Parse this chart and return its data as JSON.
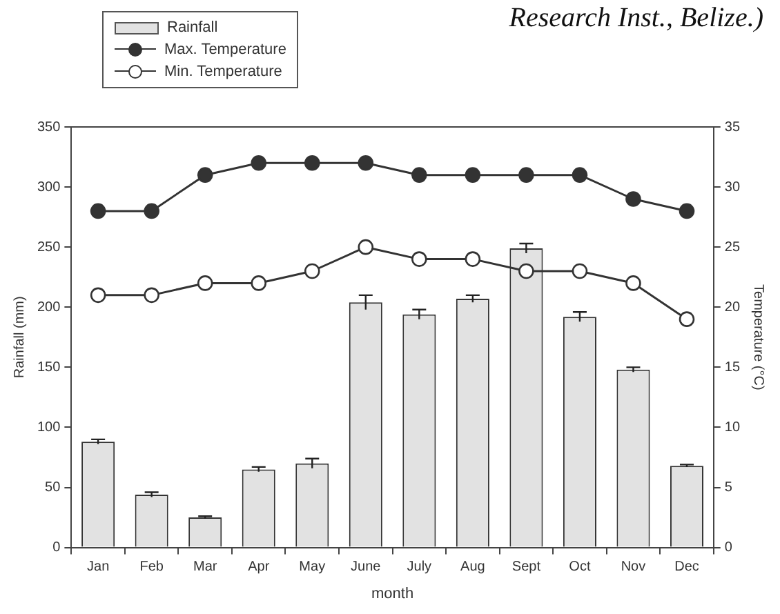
{
  "chart_data": {
    "type": "bar",
    "xlabel": "month",
    "ylabel": "Rainfall (mm)",
    "y2label": "Temperature (°C)",
    "annotations": [
      "Research Inst., Belize.)"
    ],
    "categories": [
      "Jan",
      "Feb",
      "Mar",
      "Apr",
      "May",
      "June",
      "July",
      "Aug",
      "Sept",
      "Oct",
      "Nov",
      "Dec"
    ],
    "series": [
      {
        "name": "Rainfall",
        "color": "#e2e2e2",
        "values": [
          88,
          44,
          25,
          65,
          70,
          204,
          194,
          207,
          249,
          192,
          148,
          68
        ],
        "errors": [
          2,
          2,
          1,
          2,
          4,
          6,
          4,
          3,
          4,
          4,
          2,
          1
        ]
      },
      {
        "name": "Max. Temperature",
        "type": "line",
        "axis": "y2",
        "color": "#333333",
        "values": [
          28,
          28,
          31,
          32,
          32,
          32,
          31,
          31,
          31,
          31,
          29,
          28
        ]
      },
      {
        "name": "Min. Temperature",
        "type": "line",
        "axis": "y2",
        "color": "#333333",
        "values": [
          21,
          21,
          22,
          22,
          23,
          25,
          24,
          24,
          23,
          23,
          22,
          19
        ]
      }
    ],
    "ylim": [
      0,
      350
    ],
    "yticks": [
      0,
      50,
      100,
      150,
      200,
      250,
      300,
      350
    ],
    "y2lim": [
      0,
      35
    ],
    "y2ticks": [
      0,
      5,
      10,
      15,
      20,
      25,
      30,
      35
    ],
    "grid": false,
    "legend": "top left",
    "marker": "circle",
    "line_style": "solid"
  }
}
